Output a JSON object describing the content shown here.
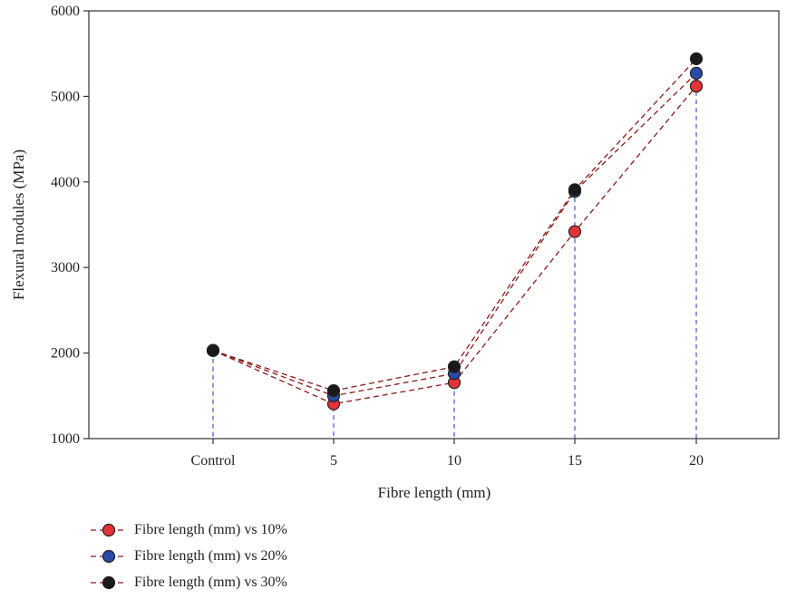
{
  "chart_data": {
    "type": "line",
    "categories": [
      "Control",
      "5",
      "10",
      "15",
      "20"
    ],
    "series": [
      {
        "name": "Fibre length (mm) vs 10%",
        "values": [
          2030,
          1405,
          1655,
          3420,
          5120
        ],
        "color": "#e53238"
      },
      {
        "name": "Fibre length (mm) vs 20%",
        "values": [
          2030,
          1500,
          1760,
          3890,
          5270
        ],
        "color": "#2a4aa8"
      },
      {
        "name": "Fibre length (mm) vs 30%",
        "values": [
          2030,
          1560,
          1840,
          3910,
          5440
        ],
        "color": "#1a1a1a"
      }
    ],
    "xlabel": "Fibre length (mm)",
    "ylabel": "Flexural modules (MPa)",
    "ylim": [
      1000,
      6000
    ],
    "yticks": [
      1000,
      2000,
      3000,
      4000,
      5000,
      6000
    ],
    "line_color": "#8b1a1a",
    "drop_line_color": "#3b5bd6",
    "grid": false,
    "legend_position": "bottom-left"
  }
}
